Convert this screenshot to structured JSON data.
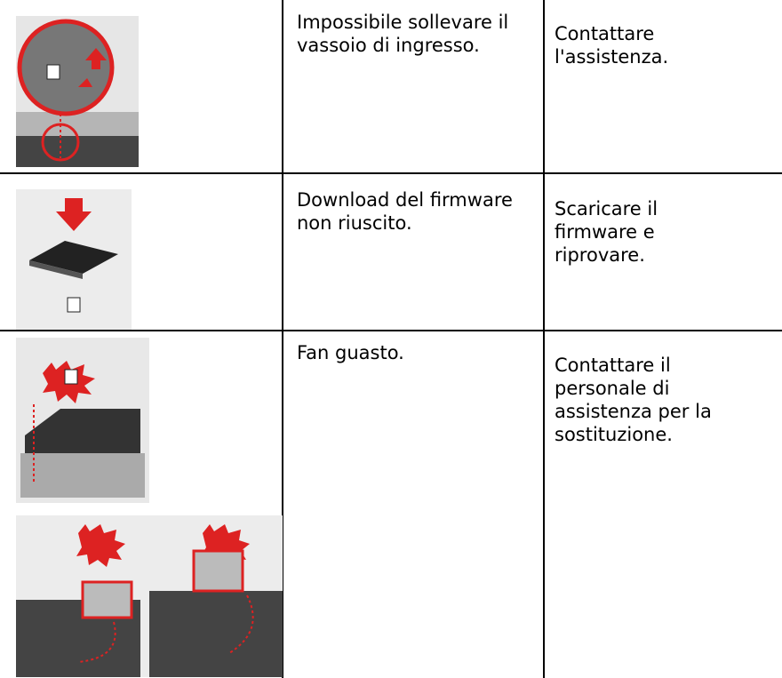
{
  "table": {
    "rows": [
      [
        "Impossibile sollevare il vassoio di ingresso.",
        "Contattare l'assistenza."
      ],
      [
        "Download del firmware non riuscito.",
        "Scaricare il firmware e riprovare."
      ],
      [
        "Fan guasto.",
        "Contattare il personale di assistenza per la sostituzione."
      ]
    ]
  }
}
